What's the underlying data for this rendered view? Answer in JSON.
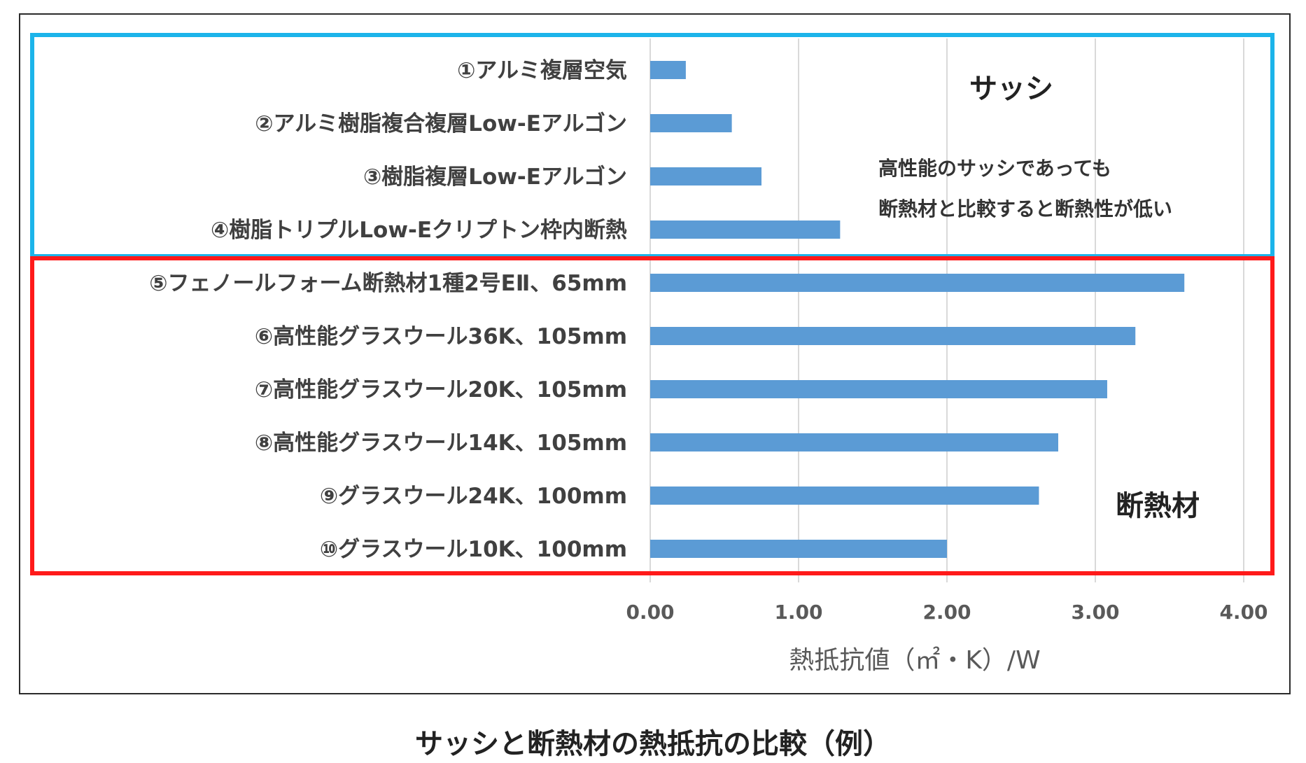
{
  "caption": "サッシと断熱材の熱抵抗の比較（例）",
  "chart_data": {
    "type": "bar",
    "orientation": "horizontal",
    "xlabel": "熱抵抗値（㎡・K）/W",
    "xlim": [
      0,
      4
    ],
    "xticks": [
      "0.00",
      "1.00",
      "2.00",
      "3.00",
      "4.00"
    ],
    "grid": true,
    "bar_color": "#5b9bd5",
    "categories": [
      "①アルミ複層空気",
      "②アルミ樹脂複合複層Low-Eアルゴン",
      "③樹脂複層Low-Eアルゴン",
      "④樹脂トリプルLow-Eクリプトン枠内断熱",
      "⑤フェノールフォーム断熱材1種2号EⅡ、65mm",
      "⑥高性能グラスウール36K、105mm",
      "⑦高性能グラスウール20K、105mm",
      "⑧高性能グラスウール14K、105mm",
      "⑨グラスウール24K、100mm",
      "⑩グラスウール10K、100mm"
    ],
    "values": [
      0.24,
      0.55,
      0.75,
      1.28,
      3.6,
      3.27,
      3.08,
      2.75,
      2.62,
      2.0
    ],
    "groups": [
      {
        "title": "サッシ",
        "items": [
          0,
          3
        ],
        "color": "#1cb4ea",
        "note": [
          "高性能のサッシであっても",
          "断熱材と比較すると断熱性が低い"
        ]
      },
      {
        "title": "断熱材",
        "items": [
          4,
          9
        ],
        "color": "#ff1a1a"
      }
    ]
  }
}
